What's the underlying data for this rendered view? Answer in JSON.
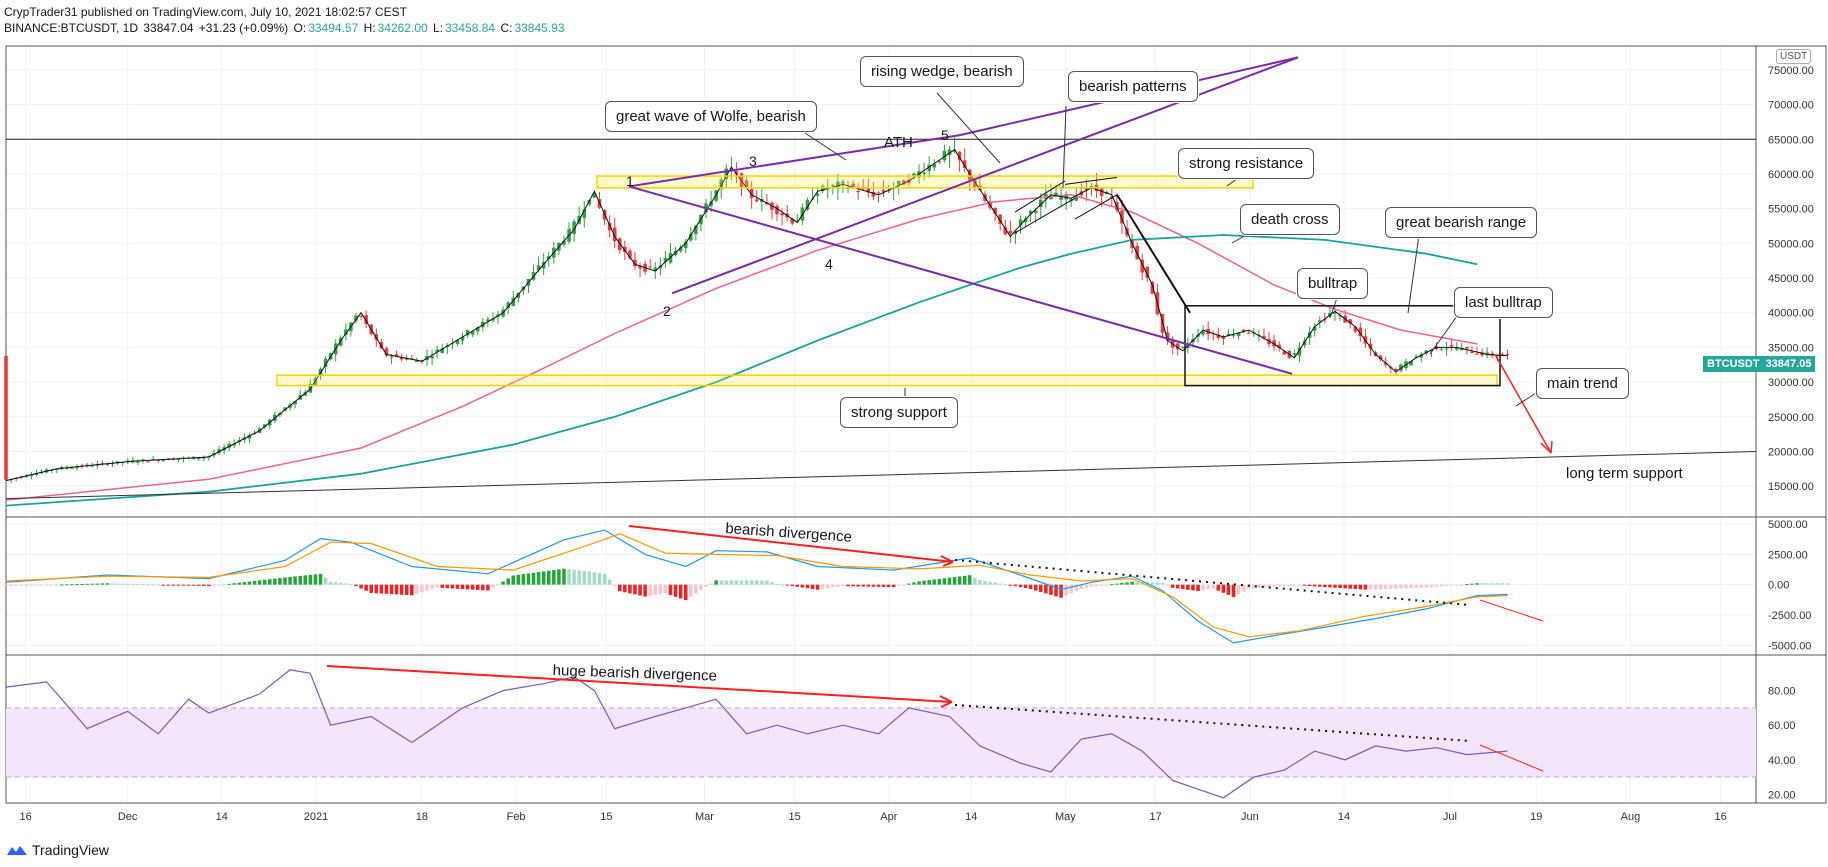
{
  "header": {
    "publisher": "CrypTrader31 published on TradingView.com, July 10, 2021 18:02:57 CEST",
    "symbol": "BINANCE:BTCUSDT, 1D",
    "last": "33847.04",
    "change": "+31.23 (+0.09%)",
    "o_label": "O:",
    "o": "33494.57",
    "h_label": "H:",
    "h": "34262.00",
    "l_label": "L:",
    "l": "33458.84",
    "c_label": "C:",
    "c": "33845.93"
  },
  "price_tag": {
    "symbol": "BTCUSDT",
    "value": "33847.05"
  },
  "currency": "USDT",
  "footer": {
    "brand": "TradingView"
  },
  "annotations": {
    "wolfe": "great wave of Wolfe, bearish",
    "wedge": "rising wedge, bearish",
    "patterns": "bearish patterns",
    "ath": "ATH",
    "resistance": "strong resistance",
    "death_cross": "death cross",
    "range": "great bearish range",
    "bulltrap": "bulltrap",
    "last_bulltrap": "last bulltrap",
    "support": "strong support",
    "main_trend": "main trend",
    "long_support": "long term support",
    "macd_div": "bearish divergence",
    "rsi_div": "huge bearish divergence",
    "wave_points": [
      "1",
      "2",
      "3",
      "4",
      "5"
    ]
  },
  "chart_data": {
    "type": "candlestick",
    "x_ticks": [
      "16",
      "Dec",
      "14",
      "2021",
      "18",
      "Feb",
      "15",
      "Mar",
      "15",
      "Apr",
      "14",
      "May",
      "17",
      "Jun",
      "14",
      "Jul",
      "19",
      "Aug",
      "16"
    ],
    "price_axis": {
      "ticks": [
        "75000.00",
        "70000.00",
        "65000.00",
        "60000.00",
        "55000.00",
        "50000.00",
        "45000.00",
        "40000.00",
        "35000.00",
        "30000.00",
        "25000.00",
        "20000.00",
        "15000.00"
      ],
      "ylim": [
        12000,
        77000
      ]
    },
    "macd_axis": {
      "ticks": [
        "5000.00",
        "2500.00",
        "0.00",
        "-2500.00",
        "-5000.00"
      ],
      "ylim": [
        -5800,
        5500
      ]
    },
    "rsi_axis": {
      "ticks": [
        "80.00",
        "60.00",
        "40.00",
        "20.00"
      ],
      "ylim": [
        15,
        100
      ],
      "band": [
        30,
        70
      ]
    },
    "price_path": [
      [
        0,
        15800
      ],
      [
        10,
        17500
      ],
      [
        25,
        18600
      ],
      [
        40,
        19200
      ],
      [
        50,
        23000
      ],
      [
        60,
        29000
      ],
      [
        66,
        36000
      ],
      [
        70,
        40000
      ],
      [
        75,
        34000
      ],
      [
        82,
        33000
      ],
      [
        90,
        36500
      ],
      [
        98,
        40000
      ],
      [
        106,
        47000
      ],
      [
        112,
        52000
      ],
      [
        116,
        57500
      ],
      [
        120,
        51000
      ],
      [
        124,
        47000
      ],
      [
        128,
        46000
      ],
      [
        134,
        50000
      ],
      [
        140,
        57000
      ],
      [
        143,
        61000
      ],
      [
        147,
        57000
      ],
      [
        152,
        55000
      ],
      [
        156,
        53000
      ],
      [
        160,
        57500
      ],
      [
        165,
        58500
      ],
      [
        172,
        57000
      ],
      [
        178,
        59000
      ],
      [
        183,
        61500
      ],
      [
        187,
        63500
      ],
      [
        190,
        60000
      ],
      [
        194,
        55500
      ],
      [
        198,
        51000
      ],
      [
        201,
        53500
      ],
      [
        206,
        57000
      ],
      [
        210,
        56500
      ],
      [
        214,
        58000
      ],
      [
        218,
        57000
      ],
      [
        222,
        50000
      ],
      [
        226,
        44000
      ],
      [
        229,
        36000
      ],
      [
        232,
        34500
      ],
      [
        236,
        37500
      ],
      [
        240,
        36500
      ],
      [
        245,
        37500
      ],
      [
        250,
        35500
      ],
      [
        254,
        33500
      ],
      [
        258,
        38000
      ],
      [
        262,
        40200
      ],
      [
        266,
        38000
      ],
      [
        270,
        34000
      ],
      [
        274,
        31500
      ],
      [
        278,
        33500
      ],
      [
        282,
        35000
      ],
      [
        286,
        35000
      ],
      [
        292,
        34000
      ],
      [
        296,
        33800
      ]
    ],
    "ma_short": [
      [
        0,
        13000
      ],
      [
        40,
        16000
      ],
      [
        70,
        20500
      ],
      [
        90,
        26500
      ],
      [
        106,
        32000
      ],
      [
        120,
        37000
      ],
      [
        140,
        43500
      ],
      [
        160,
        49000
      ],
      [
        180,
        53500
      ],
      [
        195,
        56000
      ],
      [
        210,
        57000
      ],
      [
        222,
        54500
      ],
      [
        235,
        50000
      ],
      [
        250,
        44000
      ],
      [
        262,
        40500
      ],
      [
        275,
        37500
      ],
      [
        290,
        35500
      ]
    ],
    "ma_long": [
      [
        0,
        12200
      ],
      [
        40,
        14200
      ],
      [
        70,
        16800
      ],
      [
        100,
        21000
      ],
      [
        120,
        25000
      ],
      [
        140,
        30000
      ],
      [
        160,
        36000
      ],
      [
        180,
        41500
      ],
      [
        200,
        46500
      ],
      [
        210,
        48500
      ],
      [
        222,
        50500
      ],
      [
        240,
        51200
      ],
      [
        260,
        50500
      ],
      [
        280,
        48500
      ],
      [
        290,
        47000
      ]
    ],
    "macd_line": [
      [
        0,
        200
      ],
      [
        20,
        800
      ],
      [
        40,
        500
      ],
      [
        55,
        2000
      ],
      [
        62,
        3800
      ],
      [
        68,
        3500
      ],
      [
        80,
        1500
      ],
      [
        95,
        900
      ],
      [
        110,
        3700
      ],
      [
        118,
        4500
      ],
      [
        126,
        2500
      ],
      [
        134,
        1500
      ],
      [
        140,
        2800
      ],
      [
        150,
        2700
      ],
      [
        160,
        1500
      ],
      [
        175,
        1200
      ],
      [
        190,
        2200
      ],
      [
        200,
        800
      ],
      [
        208,
        -400
      ],
      [
        214,
        200
      ],
      [
        222,
        700
      ],
      [
        228,
        -500
      ],
      [
        235,
        -3000
      ],
      [
        242,
        -4800
      ],
      [
        250,
        -4200
      ],
      [
        260,
        -3500
      ],
      [
        270,
        -2800
      ],
      [
        280,
        -2000
      ],
      [
        290,
        -900
      ],
      [
        296,
        -800
      ]
    ],
    "macd_signal": [
      [
        0,
        300
      ],
      [
        20,
        700
      ],
      [
        40,
        600
      ],
      [
        55,
        1500
      ],
      [
        64,
        3500
      ],
      [
        72,
        3400
      ],
      [
        85,
        1500
      ],
      [
        100,
        1200
      ],
      [
        115,
        3300
      ],
      [
        121,
        4200
      ],
      [
        130,
        2600
      ],
      [
        140,
        2500
      ],
      [
        152,
        2400
      ],
      [
        165,
        1500
      ],
      [
        180,
        1300
      ],
      [
        192,
        1600
      ],
      [
        202,
        800
      ],
      [
        212,
        300
      ],
      [
        222,
        500
      ],
      [
        230,
        -1000
      ],
      [
        238,
        -3500
      ],
      [
        245,
        -4300
      ],
      [
        255,
        -3800
      ],
      [
        268,
        -2600
      ],
      [
        280,
        -1800
      ],
      [
        290,
        -1000
      ],
      [
        296,
        -900
      ]
    ],
    "rsi": [
      [
        0,
        82
      ],
      [
        8,
        85
      ],
      [
        16,
        58
      ],
      [
        24,
        68
      ],
      [
        30,
        55
      ],
      [
        36,
        75
      ],
      [
        40,
        67
      ],
      [
        50,
        78
      ],
      [
        56,
        92
      ],
      [
        60,
        90
      ],
      [
        64,
        60
      ],
      [
        72,
        65
      ],
      [
        80,
        50
      ],
      [
        90,
        70
      ],
      [
        98,
        80
      ],
      [
        106,
        84
      ],
      [
        112,
        88
      ],
      [
        116,
        80
      ],
      [
        120,
        58
      ],
      [
        128,
        65
      ],
      [
        134,
        70
      ],
      [
        140,
        75
      ],
      [
        146,
        55
      ],
      [
        152,
        60
      ],
      [
        158,
        55
      ],
      [
        165,
        60
      ],
      [
        172,
        55
      ],
      [
        178,
        70
      ],
      [
        186,
        65
      ],
      [
        192,
        48
      ],
      [
        200,
        38
      ],
      [
        206,
        33
      ],
      [
        212,
        52
      ],
      [
        218,
        55
      ],
      [
        224,
        45
      ],
      [
        230,
        28
      ],
      [
        236,
        22
      ],
      [
        240,
        18
      ],
      [
        246,
        30
      ],
      [
        252,
        34
      ],
      [
        258,
        45
      ],
      [
        264,
        40
      ],
      [
        270,
        48
      ],
      [
        276,
        45
      ],
      [
        282,
        47
      ],
      [
        288,
        43
      ],
      [
        296,
        45
      ]
    ],
    "xlabel": "",
    "ylabel": ""
  }
}
